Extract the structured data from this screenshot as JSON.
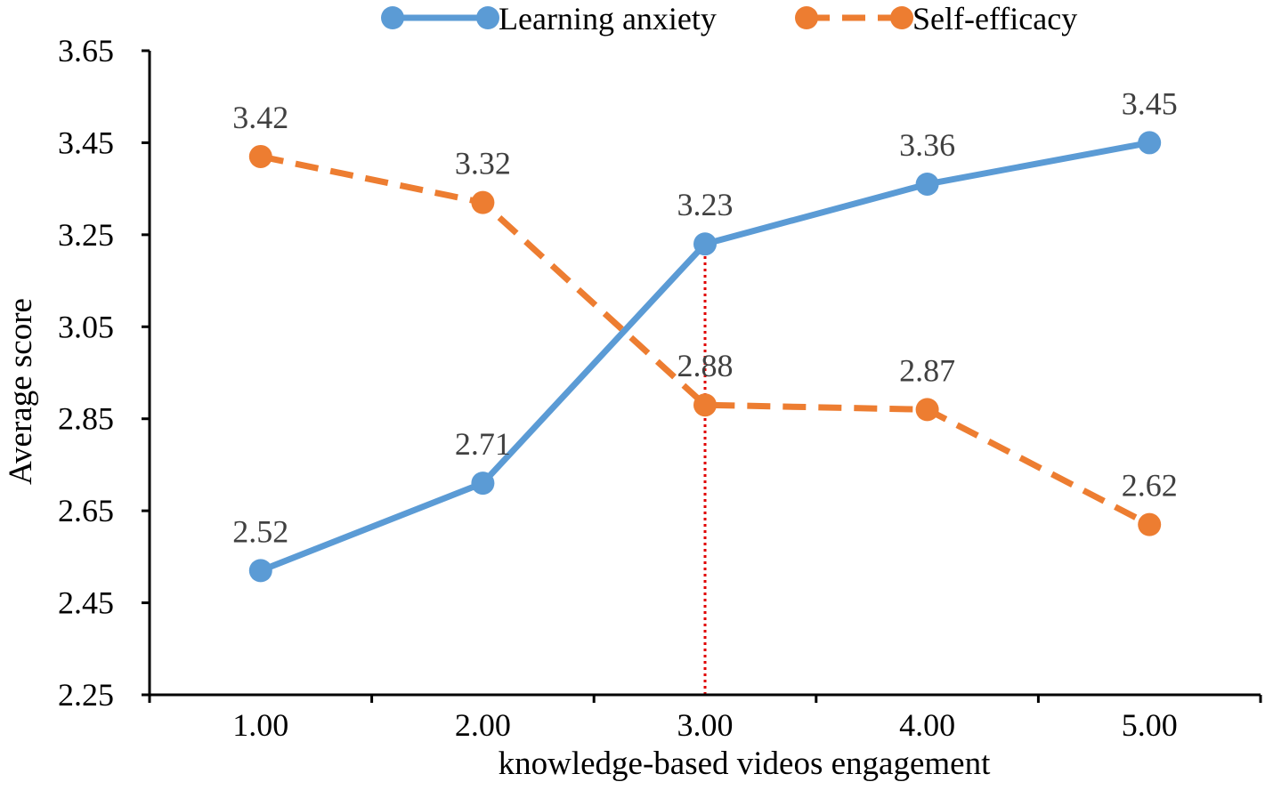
{
  "chart_data": {
    "type": "line",
    "title": "",
    "xlabel": "knowledge-based videos engagement",
    "ylabel": "Average score",
    "x": [
      1.0,
      2.0,
      3.0,
      4.0,
      5.0
    ],
    "x_tick_labels": [
      "1.00",
      "2.00",
      "3.00",
      "4.00",
      "5.00"
    ],
    "xlim": [
      0.5,
      5.5
    ],
    "ylim": [
      2.25,
      3.65
    ],
    "y_ticks": [
      2.25,
      2.45,
      2.65,
      2.85,
      3.05,
      3.25,
      3.45,
      3.65
    ],
    "y_tick_labels": [
      "2.25",
      "2.45",
      "2.65",
      "2.85",
      "3.05",
      "3.25",
      "3.45",
      "3.65"
    ],
    "series": [
      {
        "name": "Learning anxiety",
        "values": [
          2.52,
          2.71,
          3.23,
          3.36,
          3.45
        ],
        "data_labels": [
          "2.52",
          "2.71",
          "3.23",
          "3.36",
          "3.45"
        ],
        "color": "#5B9BD5",
        "line_style": "solid",
        "marker": "circle"
      },
      {
        "name": "Self-efficacy",
        "values": [
          3.42,
          3.32,
          2.88,
          2.87,
          2.62
        ],
        "data_labels": [
          "3.42",
          "3.32",
          "2.88",
          "2.87",
          "2.62"
        ],
        "color": "#ED7D31",
        "line_style": "dashed",
        "marker": "circle"
      }
    ],
    "reference_line": {
      "orientation": "vertical",
      "x": 3.0,
      "from": 2.25,
      "to": 3.23,
      "color": "#E00000",
      "style": "dotted"
    },
    "legend": {
      "position": "top-center",
      "entries": [
        "Learning anxiety",
        "Self-efficacy"
      ]
    },
    "grid": false
  }
}
